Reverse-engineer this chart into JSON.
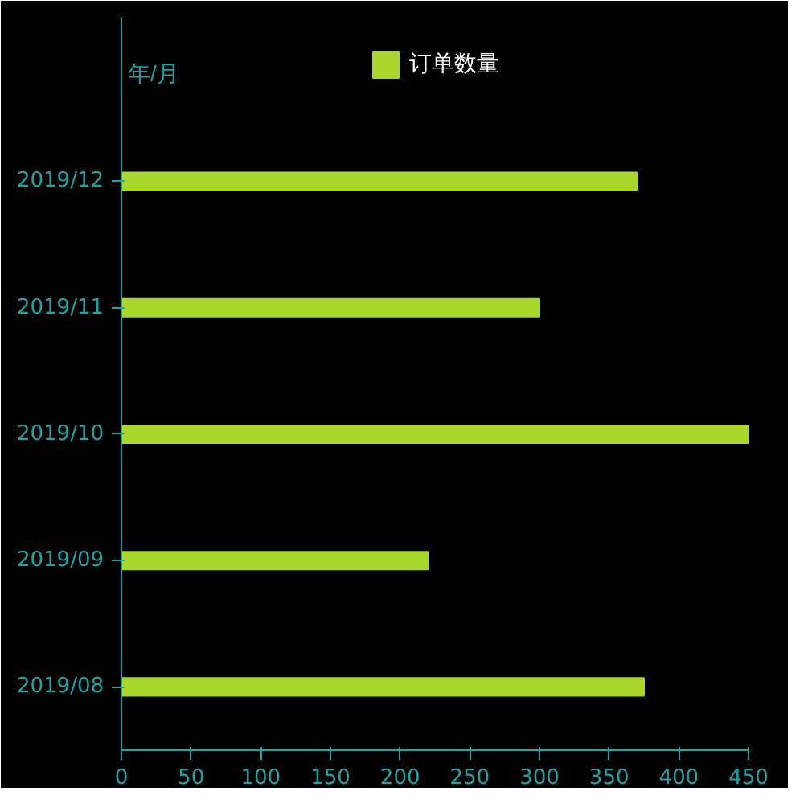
{
  "chart_data": {
    "type": "bar",
    "orientation": "horizontal",
    "ylabel": "年/月",
    "categories": [
      "2019/12",
      "2019/11",
      "2019/10",
      "2019/09",
      "2019/08"
    ],
    "series": [
      {
        "name": "订单数量",
        "color": "#a8d62a",
        "values": [
          370,
          300,
          450,
          220,
          375
        ]
      }
    ],
    "xlim": [
      0,
      450
    ],
    "xticks": [
      0,
      50,
      100,
      150,
      200,
      250,
      300,
      350,
      400,
      450
    ],
    "grid": false,
    "legend": "top"
  }
}
